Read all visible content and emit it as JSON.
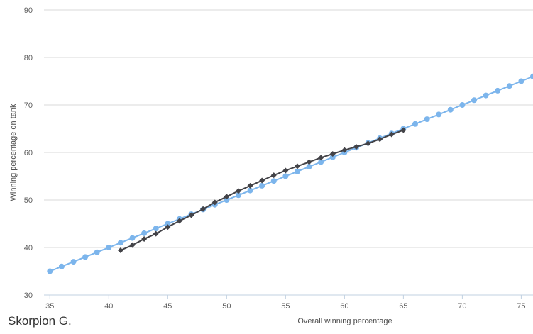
{
  "watermark": "Skorpion G.",
  "chart_data": {
    "type": "line",
    "title": "",
    "xlabel": "Overall winning percentage",
    "ylabel": "Winning percentage on tank",
    "xlim": [
      34.5,
      76
    ],
    "ylim": [
      30,
      90
    ],
    "xticks": [
      35,
      40,
      45,
      50,
      55,
      60,
      65,
      70,
      75
    ],
    "yticks": [
      30,
      40,
      50,
      60,
      70,
      80,
      90
    ],
    "grid": "horizontal",
    "legend": "none",
    "series": [
      {
        "color": "#7cb5ec",
        "marker": "circle",
        "x": [
          35,
          36,
          37,
          38,
          39,
          40,
          41,
          42,
          43,
          44,
          45,
          46,
          47,
          48,
          49,
          50,
          51,
          52,
          53,
          54,
          55,
          56,
          57,
          58,
          59,
          60,
          61,
          62,
          63,
          64,
          65,
          66,
          67,
          68,
          69,
          70,
          71,
          72,
          73,
          74,
          75,
          76
        ],
        "y": [
          35,
          36,
          37,
          38,
          39,
          40,
          41,
          42,
          43,
          44,
          45,
          46,
          47,
          48,
          49,
          50,
          51,
          52,
          53,
          54,
          55,
          56,
          57,
          58,
          59,
          60,
          61,
          62,
          63,
          64,
          65,
          66,
          67,
          68,
          69,
          70,
          71,
          72,
          73,
          74,
          75,
          76
        ]
      },
      {
        "color": "#434348",
        "marker": "diamond",
        "x": [
          41,
          42,
          43,
          44,
          45,
          46,
          47,
          48,
          49,
          50,
          51,
          52,
          53,
          54,
          55,
          56,
          57,
          58,
          59,
          60,
          61,
          62,
          63,
          64,
          65
        ],
        "y": [
          39.4,
          40.5,
          41.8,
          42.9,
          44.3,
          45.6,
          46.8,
          48.1,
          49.5,
          50.7,
          51.9,
          53.0,
          54.1,
          55.2,
          56.2,
          57.1,
          58.0,
          58.9,
          59.7,
          60.5,
          61.2,
          61.9,
          62.8,
          63.8,
          64.7
        ]
      }
    ]
  }
}
